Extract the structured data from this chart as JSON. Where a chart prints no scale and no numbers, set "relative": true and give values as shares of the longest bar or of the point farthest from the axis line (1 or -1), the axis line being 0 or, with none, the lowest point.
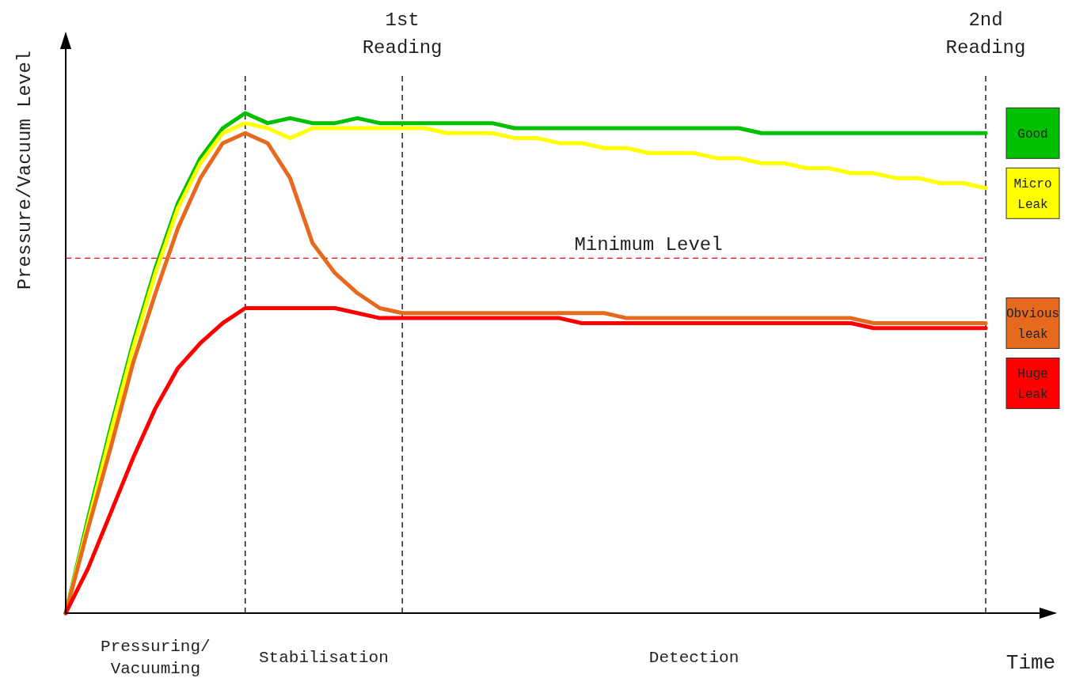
{
  "chart_data": {
    "type": "line",
    "relative": true,
    "xlabel": "Time",
    "ylabel": "Pressure/Vacuum Level",
    "legend": "right",
    "categories": [
      null,
      null,
      null,
      null,
      null,
      null,
      null,
      null,
      null,
      null,
      null,
      null,
      null,
      null,
      null,
      null,
      null,
      null,
      null,
      null,
      null,
      null,
      null,
      null,
      null,
      null,
      null,
      null,
      null,
      null,
      null,
      null,
      null,
      null,
      null,
      null,
      null,
      null,
      null,
      null,
      null,
      null
    ],
    "series": [
      {
        "name": "Good",
        "color": "#00c000",
        "values": [
          0,
          0.19,
          0.37,
          0.54,
          0.69,
          0.82,
          0.91,
          0.97,
          1.0,
          0.98,
          0.99,
          0.98,
          0.98,
          0.99,
          0.98,
          0.98,
          0.98,
          0.98,
          0.98,
          0.98,
          0.97,
          0.97,
          0.97,
          0.97,
          0.97,
          0.97,
          0.97,
          0.97,
          0.97,
          0.97,
          0.97,
          0.96,
          0.96,
          0.96,
          0.96,
          0.96,
          0.96,
          0.96,
          0.96,
          0.96,
          0.96,
          0.96
        ]
      },
      {
        "name": "Micro Leak",
        "color": "#ffff00",
        "values": [
          0,
          0.18,
          0.36,
          0.53,
          0.68,
          0.81,
          0.9,
          0.96,
          0.98,
          0.97,
          0.95,
          0.97,
          0.97,
          0.97,
          0.97,
          0.97,
          0.97,
          0.96,
          0.96,
          0.96,
          0.95,
          0.95,
          0.94,
          0.94,
          0.93,
          0.93,
          0.92,
          0.92,
          0.92,
          0.91,
          0.91,
          0.9,
          0.9,
          0.89,
          0.89,
          0.88,
          0.88,
          0.87,
          0.87,
          0.86,
          0.86,
          0.85
        ]
      },
      {
        "name": "Obvious leak",
        "color": "#e6691e",
        "values": [
          0,
          0.17,
          0.33,
          0.5,
          0.64,
          0.77,
          0.87,
          0.94,
          0.96,
          0.94,
          0.87,
          0.74,
          0.68,
          0.64,
          0.61,
          0.6,
          0.6,
          0.6,
          0.6,
          0.6,
          0.6,
          0.6,
          0.6,
          0.6,
          0.6,
          0.59,
          0.59,
          0.59,
          0.59,
          0.59,
          0.59,
          0.59,
          0.59,
          0.59,
          0.59,
          0.59,
          0.58,
          0.58,
          0.58,
          0.58,
          0.58,
          0.58
        ]
      },
      {
        "name": "Huge Leak",
        "color": "#ff0000",
        "values": [
          0,
          0.09,
          0.2,
          0.31,
          0.41,
          0.49,
          0.54,
          0.58,
          0.61,
          0.61,
          0.61,
          0.61,
          0.61,
          0.6,
          0.59,
          0.59,
          0.59,
          0.59,
          0.59,
          0.59,
          0.59,
          0.59,
          0.59,
          0.58,
          0.58,
          0.58,
          0.58,
          0.58,
          0.58,
          0.58,
          0.58,
          0.58,
          0.58,
          0.58,
          0.58,
          0.58,
          0.57,
          0.57,
          0.57,
          0.57,
          0.57,
          0.57
        ]
      }
    ],
    "ref_lines": [
      {
        "axis": "y",
        "value": 0.71,
        "label": "Minimum Level",
        "color": "#ff0000",
        "line_style": "dashed"
      }
    ],
    "annotations": [
      "1st Reading",
      "2nd Reading",
      "Pressuring/Vacuuming",
      "Stabilisation",
      "Detection"
    ]
  }
}
